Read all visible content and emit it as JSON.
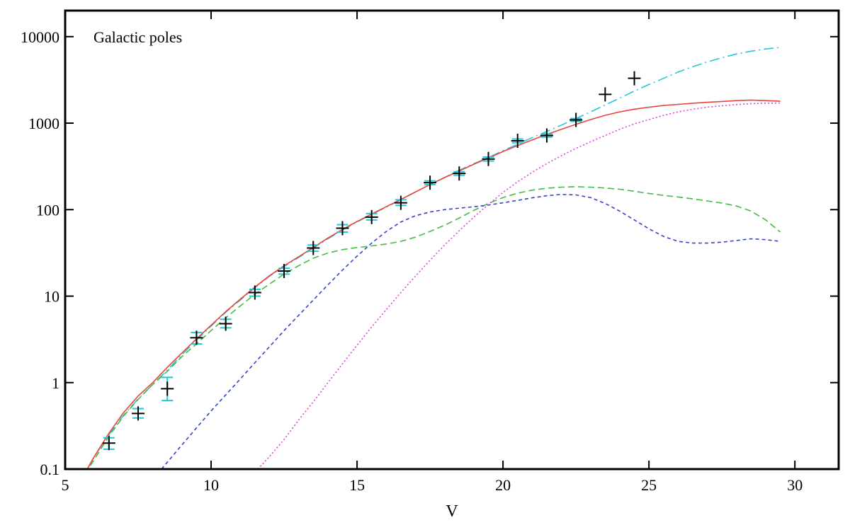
{
  "chart_data": {
    "type": "line",
    "annotation": "Galactic poles",
    "xlabel": "V",
    "ylabel": "",
    "xlim": [
      5,
      31.5
    ],
    "ylim": [
      0.1,
      20000
    ],
    "yscale": "log",
    "xticks": [
      5,
      10,
      15,
      20,
      25,
      30
    ],
    "yticks": [
      0.1,
      1,
      10,
      100,
      1000,
      10000
    ],
    "ytick_labels": [
      "0.1",
      "1",
      "10",
      "100",
      "1000",
      "10000"
    ],
    "grid": false,
    "colors": {
      "total": "#e8443a",
      "cyan_model": "#22c8d8",
      "green_model": "#44bb44",
      "blue_model": "#3344cc",
      "magenta_model": "#dd44dd",
      "observed": "#000000",
      "errorbar": "#22c8d8"
    },
    "series": [
      {
        "key": "cyan_model",
        "style": "dashdot",
        "x": [
          5.5,
          6,
          6.5,
          7,
          7.5,
          8,
          8.5,
          9,
          9.5,
          10,
          10.5,
          11,
          11.5,
          12,
          12.5,
          13,
          13.5,
          14,
          14.5,
          15,
          15.5,
          16,
          16.5,
          17,
          17.5,
          18,
          18.5,
          19,
          19.5,
          20,
          20.5,
          21,
          21.5,
          22,
          22.5,
          23,
          23.5,
          24,
          24.5,
          25,
          25.5,
          26,
          26.5,
          27,
          27.5,
          28,
          28.5,
          29,
          29.5
        ],
        "y": [
          0.07,
          0.14,
          0.25,
          0.42,
          0.65,
          0.95,
          1.4,
          2.1,
          3.1,
          4.5,
          6.5,
          9.0,
          12.5,
          17,
          22,
          28,
          36,
          46,
          58,
          72,
          88,
          107,
          130,
          160,
          195,
          235,
          285,
          340,
          400,
          480,
          570,
          680,
          800,
          950,
          1130,
          1350,
          1620,
          1950,
          2350,
          2800,
          3300,
          3900,
          4500,
          5100,
          5700,
          6300,
          6800,
          7200,
          7500
        ]
      },
      {
        "key": "total",
        "style": "solid",
        "x": [
          5.5,
          6,
          6.5,
          7,
          7.5,
          8,
          8.5,
          9,
          9.5,
          10,
          10.5,
          11,
          11.5,
          12,
          12.5,
          13,
          13.5,
          14,
          14.5,
          15,
          15.5,
          16,
          16.5,
          17,
          17.5,
          18,
          18.5,
          19,
          19.5,
          20,
          20.5,
          21,
          21.5,
          22,
          22.5,
          23,
          23.5,
          24,
          24.5,
          25,
          25.5,
          26,
          26.5,
          27,
          27.5,
          28,
          28.5,
          29,
          29.5
        ],
        "y": [
          0.07,
          0.14,
          0.26,
          0.45,
          0.7,
          1.0,
          1.5,
          2.2,
          3.2,
          4.6,
          6.6,
          9.2,
          12.7,
          17.2,
          22.5,
          28.5,
          36.5,
          47,
          59,
          73,
          89,
          108,
          131,
          160,
          195,
          235,
          280,
          335,
          395,
          470,
          550,
          640,
          740,
          850,
          970,
          1100,
          1230,
          1350,
          1450,
          1530,
          1600,
          1650,
          1700,
          1740,
          1780,
          1820,
          1850,
          1820,
          1790
        ]
      },
      {
        "key": "green_model",
        "style": "dashed",
        "x": [
          5.5,
          6,
          6.5,
          7,
          7.5,
          8,
          8.5,
          9,
          9.5,
          10,
          10.5,
          11,
          11.5,
          12,
          12.5,
          13,
          13.5,
          14,
          14.5,
          15,
          15.5,
          16,
          16.5,
          17,
          17.5,
          18,
          18.5,
          19,
          19.5,
          20,
          20.5,
          21,
          21.5,
          22,
          22.5,
          23,
          23.5,
          24,
          24.5,
          25,
          25.5,
          26,
          26.5,
          27,
          27.5,
          28,
          28.5,
          29,
          29.5
        ],
        "y": [
          0.07,
          0.13,
          0.24,
          0.41,
          0.64,
          0.95,
          1.35,
          2.0,
          2.8,
          4.0,
          5.6,
          7.7,
          10.5,
          13.8,
          18,
          22.5,
          27.5,
          31.5,
          34.5,
          36.5,
          38,
          40,
          43,
          48,
          56,
          66,
          80,
          98,
          118,
          138,
          155,
          168,
          177,
          182,
          184,
          182,
          178,
          172,
          163,
          154,
          146,
          140,
          133,
          126,
          119,
          110,
          96,
          76,
          55
        ]
      },
      {
        "key": "blue_model",
        "style": "dashed-fine",
        "x": [
          8.3,
          8.5,
          9,
          9.5,
          10,
          10.5,
          11,
          11.5,
          12,
          12.5,
          13,
          13.5,
          14,
          14.5,
          15,
          15.5,
          16,
          16.5,
          17,
          17.5,
          18,
          18.5,
          19,
          19.5,
          20,
          20.5,
          21,
          21.5,
          22,
          22.5,
          23,
          23.5,
          24,
          24.5,
          25,
          25.5,
          26,
          26.5,
          27,
          27.5,
          28,
          28.5,
          29,
          29.5
        ],
        "y": [
          0.1,
          0.12,
          0.19,
          0.3,
          0.47,
          0.72,
          1.1,
          1.7,
          2.6,
          4.0,
          6.0,
          9.0,
          13.5,
          20,
          29,
          41,
          56,
          72,
          85,
          94,
          100,
          104,
          108,
          113,
          120,
          128,
          137,
          145,
          150,
          148,
          138,
          118,
          96,
          76,
          60,
          49,
          43,
          41,
          41,
          42,
          44,
          46,
          45,
          43
        ]
      },
      {
        "key": "magenta_model",
        "style": "dotted",
        "x": [
          11.6,
          12,
          12.5,
          13,
          13.5,
          14,
          14.5,
          15,
          15.5,
          16,
          16.5,
          17,
          17.5,
          18,
          18.5,
          19,
          19.5,
          20,
          20.5,
          21,
          21.5,
          22,
          22.5,
          23,
          23.5,
          24,
          24.5,
          25,
          25.5,
          26,
          26.5,
          27,
          27.5,
          28,
          28.5,
          29,
          29.5
        ],
        "y": [
          0.1,
          0.14,
          0.22,
          0.37,
          0.6,
          1.0,
          1.65,
          2.7,
          4.4,
          7.0,
          11,
          17,
          26,
          39,
          57,
          82,
          115,
          158,
          210,
          270,
          340,
          420,
          510,
          610,
          720,
          850,
          980,
          1100,
          1230,
          1350,
          1450,
          1530,
          1590,
          1640,
          1680,
          1700,
          1710
        ]
      }
    ],
    "observed": {
      "name": "",
      "x": [
        6.5,
        7.5,
        8.5,
        9.5,
        10.5,
        11.5,
        12.5,
        13.5,
        14.5,
        15.5,
        16.5,
        17.5,
        18.5,
        19.5,
        20.5,
        21.5,
        22.5,
        23.5,
        24.5
      ],
      "y": [
        0.2,
        0.44,
        0.85,
        3.3,
        4.8,
        11,
        19.5,
        36,
        61,
        82,
        120,
        205,
        262,
        385,
        625,
        720,
        1090,
        2150,
        3300
      ],
      "err_low": [
        0.17,
        0.39,
        0.62,
        2.8,
        4.3,
        10,
        18,
        33,
        55,
        76,
        112,
        195,
        250,
        365,
        595,
        690,
        1050,
        2150,
        3300
      ],
      "err_high": [
        0.23,
        0.5,
        1.15,
        3.8,
        5.4,
        12,
        21,
        39,
        67,
        90,
        130,
        215,
        275,
        405,
        655,
        750,
        1130,
        2150,
        3300
      ]
    }
  }
}
